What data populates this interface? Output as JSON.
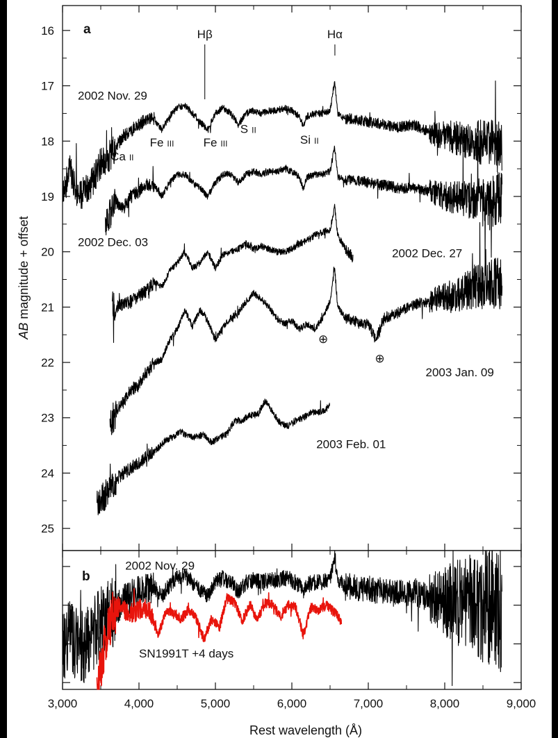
{
  "chart_data": [
    {
      "panel": "a",
      "type": "line",
      "xlabel": "Rest wavelength (Å)",
      "ylabel_italic": "AB",
      "ylabel_rest": " magnitude + offset",
      "xlim": [
        3000,
        9000
      ],
      "ylim": [
        25.4,
        15.55
      ],
      "y_inverted": true,
      "x_ticks": [
        3000,
        4000,
        5000,
        6000,
        7000,
        8000,
        9000
      ],
      "x_tick_labels": [
        "3,000",
        "4,000",
        "5,000",
        "6,000",
        "7,000",
        "8,000",
        "9,000"
      ],
      "y_ticks": [
        16,
        17,
        18,
        19,
        20,
        21,
        22,
        23,
        24,
        25
      ],
      "y_tick_labels": [
        "16",
        "17",
        "18",
        "19",
        "20",
        "21",
        "22",
        "23",
        "24",
        "25"
      ],
      "grid": false,
      "series": [
        {
          "name": "2002 Nov. 29",
          "color": "#000000",
          "x": [
            3000,
            3100,
            3200,
            3300,
            3400,
            3500,
            3600,
            3700,
            3800,
            3900,
            4000,
            4100,
            4200,
            4300,
            4400,
            4500,
            4600,
            4700,
            4800,
            4900,
            5000,
            5100,
            5200,
            5300,
            5400,
            5500,
            5600,
            5700,
            5800,
            5900,
            6000,
            6100,
            6150,
            6200,
            6300,
            6400,
            6500,
            6560,
            6600,
            6700,
            6800,
            7000,
            7200,
            7400,
            7600,
            7800,
            8000,
            8200,
            8400,
            8600,
            8750
          ],
          "y": [
            19.0,
            18.5,
            19.0,
            18.9,
            18.7,
            18.4,
            18.3,
            18.1,
            17.9,
            17.8,
            17.7,
            17.6,
            17.6,
            17.8,
            17.55,
            17.4,
            17.35,
            17.5,
            17.65,
            17.8,
            17.5,
            17.4,
            17.5,
            17.7,
            17.5,
            17.45,
            17.5,
            17.45,
            17.45,
            17.4,
            17.45,
            17.55,
            17.75,
            17.55,
            17.5,
            17.5,
            17.45,
            16.9,
            17.5,
            17.6,
            17.6,
            17.65,
            17.7,
            17.75,
            17.7,
            17.85,
            17.9,
            17.95,
            18.0,
            18.05,
            18.1
          ]
        },
        {
          "name": "2002 Dec. 03",
          "color": "#000000",
          "x": [
            3560,
            3700,
            3800,
            3900,
            4000,
            4100,
            4200,
            4300,
            4400,
            4500,
            4600,
            4700,
            4800,
            4900,
            5000,
            5100,
            5200,
            5300,
            5400,
            5500,
            5600,
            5700,
            5800,
            5900,
            6000,
            6100,
            6150,
            6200,
            6300,
            6400,
            6500,
            6560,
            6600,
            6700,
            6800,
            7000,
            7200,
            7400,
            7600,
            7800,
            8000,
            8200,
            8400,
            8600,
            8750
          ],
          "y": [
            19.5,
            19.1,
            19.2,
            19.0,
            18.9,
            18.8,
            18.8,
            19.0,
            18.75,
            18.6,
            18.6,
            18.75,
            18.85,
            19.0,
            18.75,
            18.6,
            18.6,
            18.75,
            18.6,
            18.55,
            18.6,
            18.55,
            18.55,
            18.5,
            18.55,
            18.65,
            18.85,
            18.65,
            18.6,
            18.6,
            18.55,
            18.1,
            18.65,
            18.7,
            18.7,
            18.75,
            18.8,
            18.85,
            18.85,
            18.9,
            19.0,
            19.05,
            19.05,
            19.1,
            19.0
          ]
        },
        {
          "name": "2002 Dec. 27",
          "color": "#000000",
          "x": [
            3650,
            3800,
            3900,
            4000,
            4100,
            4200,
            4300,
            4400,
            4500,
            4600,
            4700,
            4800,
            4900,
            5000,
            5100,
            5200,
            5300,
            5400,
            5500,
            5600,
            5700,
            5800,
            5900,
            6000,
            6100,
            6200,
            6300,
            6400,
            6500,
            6560,
            6600,
            6700,
            6800
          ],
          "y": [
            21.0,
            20.95,
            20.9,
            20.8,
            20.7,
            20.55,
            20.65,
            20.35,
            20.2,
            20.0,
            20.3,
            20.2,
            20.0,
            20.3,
            20.05,
            20.0,
            19.95,
            19.85,
            19.95,
            19.9,
            19.95,
            20.0,
            20.0,
            19.95,
            19.85,
            19.8,
            19.7,
            19.65,
            19.6,
            19.2,
            19.7,
            19.95,
            20.1
          ]
        },
        {
          "name": "2003 Jan. 09",
          "color": "#000000",
          "x": [
            3620,
            3700,
            3800,
            3900,
            4000,
            4100,
            4200,
            4300,
            4400,
            4500,
            4600,
            4700,
            4800,
            4900,
            5000,
            5100,
            5200,
            5300,
            5400,
            5500,
            5600,
            5700,
            5800,
            5900,
            6000,
            6100,
            6200,
            6300,
            6400,
            6500,
            6560,
            6600,
            6700,
            6800,
            6900,
            7000,
            7100,
            7200,
            7400,
            7600,
            7800,
            8000,
            8200,
            8400,
            8600,
            8750
          ],
          "y": [
            23.1,
            22.9,
            22.7,
            22.5,
            22.4,
            22.2,
            22.0,
            21.95,
            21.6,
            21.4,
            21.05,
            21.35,
            21.05,
            21.25,
            21.6,
            21.35,
            21.2,
            21.1,
            20.9,
            20.75,
            20.85,
            21.0,
            21.2,
            21.3,
            21.25,
            21.4,
            21.3,
            21.4,
            21.2,
            20.9,
            20.3,
            21.0,
            21.2,
            21.25,
            21.3,
            21.3,
            21.6,
            21.2,
            21.1,
            20.95,
            20.9,
            20.8,
            20.75,
            20.65,
            20.6,
            20.55
          ]
        },
        {
          "name": "2003 Feb. 01",
          "color": "#000000",
          "x": [
            3450,
            3550,
            3650,
            3750,
            3850,
            3950,
            4050,
            4150,
            4250,
            4350,
            4450,
            4550,
            4650,
            4750,
            4850,
            4950,
            5050,
            5150,
            5250,
            5350,
            5450,
            5550,
            5650,
            5750,
            5850,
            5950,
            6050,
            6150,
            6250,
            6350,
            6450,
            6500
          ],
          "y": [
            24.6,
            24.4,
            24.2,
            24.05,
            23.95,
            23.85,
            23.75,
            23.65,
            23.55,
            23.4,
            23.35,
            23.25,
            23.35,
            23.35,
            23.3,
            23.45,
            23.35,
            23.3,
            23.05,
            23.05,
            22.95,
            22.95,
            22.7,
            22.9,
            23.1,
            23.15,
            23.05,
            23.0,
            22.9,
            22.9,
            22.85,
            22.75
          ]
        }
      ],
      "annotations": {
        "hbeta": {
          "text": "Hβ",
          "x": 4861
        },
        "halpha": {
          "text": "Hα",
          "x": 6563
        },
        "ions": [
          {
            "element": "Ca",
            "stage": "II",
            "x": 3780,
            "y": 18.35
          },
          {
            "element": "Fe",
            "stage": "III",
            "x": 4300,
            "y": 18.1
          },
          {
            "element": "Fe",
            "stage": "III",
            "x": 5000,
            "y": 18.1
          },
          {
            "element": "S",
            "stage": "II",
            "x": 5430,
            "y": 17.85
          },
          {
            "element": "Si",
            "stage": "II",
            "x": 6230,
            "y": 18.05
          }
        ],
        "series_labels": [
          {
            "text": "2002 Nov. 29",
            "x": 3200,
            "y": 17.25
          },
          {
            "text": "2002 Dec. 03",
            "x": 3200,
            "y": 19.9
          },
          {
            "text": "2002 Dec. 27",
            "x": 7310,
            "y": 20.1
          },
          {
            "text": "2003 Jan. 09",
            "x": 7750,
            "y": 22.25
          },
          {
            "text": "2003 Feb. 01",
            "x": 6320,
            "y": 23.55
          }
        ],
        "telluric": [
          {
            "symbol": "⊕",
            "x": 6410,
            "y": 21.65
          },
          {
            "symbol": "⊕",
            "x": 7150,
            "y": 22.0
          }
        ]
      }
    },
    {
      "panel": "b",
      "type": "line",
      "xlabel": "Rest wavelength (Å)",
      "xlim": [
        3000,
        9000
      ],
      "ylim": [
        3.05,
        0
      ],
      "y_inverted": true,
      "grid": false,
      "series": [
        {
          "name": "2002 Nov. 29",
          "color": "#000000",
          "x": [
            3000,
            3100,
            3200,
            3300,
            3400,
            3500,
            3600,
            3700,
            3800,
            3900,
            4000,
            4100,
            4200,
            4300,
            4400,
            4500,
            4600,
            4700,
            4800,
            4900,
            5000,
            5100,
            5200,
            5300,
            5400,
            5500,
            5600,
            5700,
            5800,
            5900,
            6000,
            6100,
            6150,
            6200,
            6300,
            6400,
            6500,
            6560,
            6600,
            6700,
            6800,
            7000,
            7200,
            7400,
            7600,
            7800,
            8000,
            8200,
            8400,
            8600,
            8750
          ],
          "y": [
            2.2,
            1.7,
            2.2,
            2.1,
            1.9,
            1.6,
            1.5,
            1.3,
            1.1,
            1.0,
            0.9,
            0.8,
            0.8,
            1.0,
            0.75,
            0.6,
            0.55,
            0.7,
            0.85,
            1.0,
            0.7,
            0.6,
            0.7,
            0.9,
            0.7,
            0.65,
            0.7,
            0.65,
            0.65,
            0.6,
            0.65,
            0.75,
            0.95,
            0.75,
            0.7,
            0.7,
            0.65,
            0.1,
            0.7,
            0.8,
            0.8,
            0.85,
            0.9,
            0.95,
            0.9,
            1.05,
            1.1,
            1.15,
            1.2,
            1.25,
            1.3
          ]
        },
        {
          "name": "SN1991T +4 days",
          "color": "#e8140c",
          "x": [
            3450,
            3550,
            3650,
            3750,
            3850,
            3950,
            4050,
            4150,
            4250,
            4350,
            4450,
            4550,
            4650,
            4750,
            4850,
            4950,
            5050,
            5150,
            5250,
            5350,
            5450,
            5550,
            5650,
            5750,
            5850,
            5950,
            6050,
            6150,
            6250,
            6350,
            6450,
            6550,
            6650
          ],
          "y": [
            3.0,
            2.1,
            1.4,
            1.2,
            1.4,
            1.35,
            1.25,
            1.35,
            1.9,
            1.3,
            1.35,
            1.5,
            1.3,
            1.5,
            1.95,
            1.5,
            1.7,
            1.05,
            1.15,
            1.55,
            1.2,
            1.5,
            1.15,
            1.2,
            1.45,
            1.2,
            1.25,
            1.85,
            1.25,
            1.3,
            1.2,
            1.35,
            1.55
          ]
        }
      ],
      "annotations": {
        "series_labels": [
          {
            "text": "2002 Nov. 29",
            "x": 3820,
            "y": 0.42
          },
          {
            "text": "SN1991T +4 days",
            "x": 4000,
            "y": 2.35
          }
        ]
      }
    }
  ]
}
